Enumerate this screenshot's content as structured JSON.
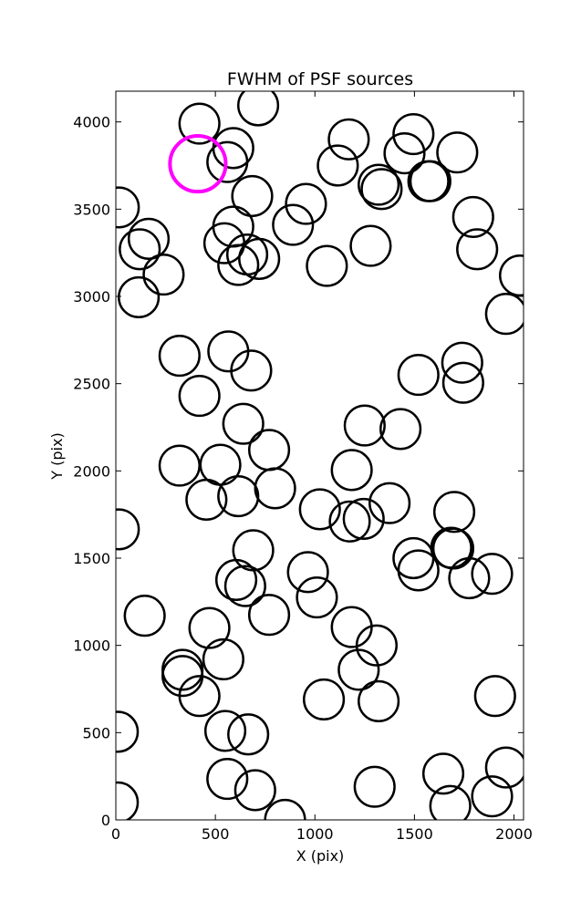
{
  "chart_data": {
    "type": "scatter",
    "title": "FWHM of PSF sources",
    "xlabel": "X (pix)",
    "ylabel": "Y (pix)",
    "xlim": [
      0,
      2048
    ],
    "ylim": [
      0,
      4176
    ],
    "xticks": [
      0,
      500,
      1000,
      1500,
      2000
    ],
    "yticks": [
      0,
      500,
      1000,
      1500,
      2000,
      2500,
      3000,
      3500,
      4000
    ],
    "xtick_labels": [
      "0",
      "500",
      "1000",
      "1500",
      "2000"
    ],
    "ytick_labels": [
      "0",
      "500",
      "1000",
      "1500",
      "2000",
      "2500",
      "3000",
      "3500",
      "4000"
    ],
    "grid": false,
    "marker": "open-circle",
    "marker_radius_pix": 100,
    "series": [
      {
        "color": "#000000",
        "x": [
          420,
          715,
          590,
          1170,
          1495,
          1450,
          1715,
          560,
          685,
          955,
          1115,
          1320,
          1335,
          1570,
          15,
          890,
          1580,
          1795,
          590,
          165,
          120,
          615,
          545,
          1060,
          1280,
          1815,
          240,
          2030,
          720,
          660,
          115,
          1960,
          320,
          565,
          680,
          1740,
          1745,
          1520,
          420,
          640,
          1250,
          1430,
          770,
          320,
          525,
          1185,
          800,
          455,
          615,
          1025,
          1175,
          1245,
          1375,
          1700,
          1695,
          15,
          1495,
          1520,
          1685,
          965,
          690,
          1775,
          1890,
          605,
          650,
          1010,
          145,
          770,
          470,
          1185,
          540,
          1310,
          335,
          1220,
          335,
          420,
          1905,
          1045,
          1320,
          10,
          550,
          1960,
          665,
          1645,
          1890,
          1300,
          560,
          700,
          1680,
          10,
          850
        ],
        "y": [
          3990,
          4095,
          3850,
          3900,
          3930,
          3820,
          3825,
          3770,
          3575,
          3530,
          3750,
          3640,
          3615,
          3660,
          3510,
          3410,
          3660,
          3455,
          3400,
          3330,
          3270,
          3180,
          3305,
          3175,
          3290,
          3270,
          3125,
          3120,
          3215,
          3240,
          2995,
          2900,
          2660,
          2685,
          2575,
          2620,
          2505,
          2550,
          2430,
          2270,
          2260,
          2240,
          2120,
          2030,
          2035,
          2005,
          1900,
          1835,
          1855,
          1780,
          1710,
          1725,
          1815,
          1765,
          1555,
          1665,
          1500,
          1430,
          1560,
          1420,
          1545,
          1385,
          1410,
          1375,
          1340,
          1275,
          1170,
          1175,
          1100,
          1105,
          920,
          1000,
          860,
          860,
          825,
          710,
          710,
          690,
          680,
          505,
          510,
          300,
          490,
          265,
          135,
          190,
          235,
          170,
          80,
          100,
          0
        ]
      },
      {
        "name": "",
        "color": "#FF00FF",
        "x": [
          412
        ],
        "y": [
          3760
        ]
      }
    ]
  }
}
